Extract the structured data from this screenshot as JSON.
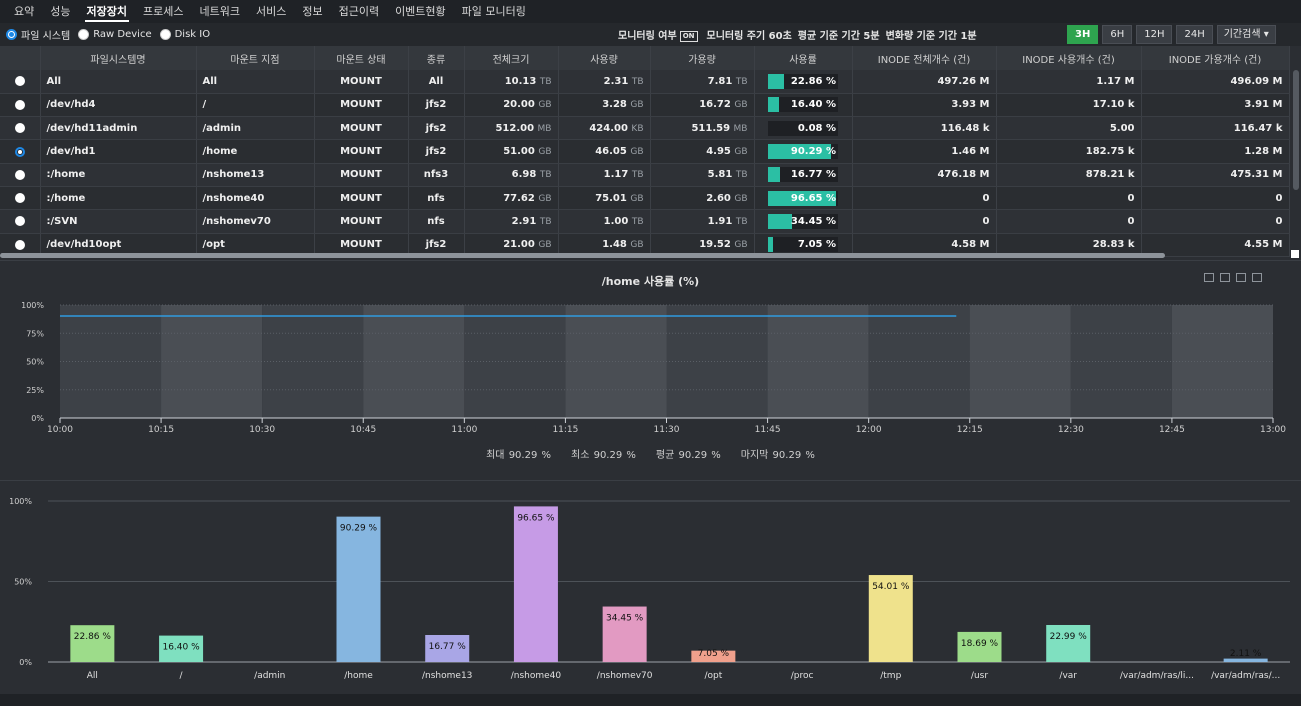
{
  "nav": {
    "tabs": [
      "요약",
      "성능",
      "저장장치",
      "프로세스",
      "네트워크",
      "서비스",
      "정보",
      "접근이력",
      "이벤트현황",
      "파일 모니터링"
    ],
    "active_index": 2
  },
  "options": {
    "radios": [
      "파일 시스템",
      "Raw Device",
      "Disk IO"
    ],
    "selected": 0
  },
  "status": {
    "monitoring_label": "모니터링 여부",
    "monitoring_badge": "ON",
    "interval": "모니터링 주기 60초",
    "avg_period": "평균 기준 기간 5분",
    "delta_period": "변화량 기준 기간 1분"
  },
  "periods": {
    "buttons": [
      "3H",
      "6H",
      "12H",
      "24H"
    ],
    "active": "3H",
    "search_label": "기간검색 ▾"
  },
  "table": {
    "headers": [
      "",
      "파일시스템명",
      "마운트 지점",
      "마운트 상태",
      "종류",
      "전체크기",
      "사용량",
      "가용량",
      "사용률",
      "INODE 전체개수 (건)",
      "INODE 사용개수 (건)",
      "INODE 가용개수 (건)"
    ],
    "rows": [
      {
        "fs": "All",
        "mount": "All",
        "state": "MOUNT",
        "type": "All",
        "total": "10.13",
        "total_u": "TB",
        "used": "2.31",
        "used_u": "TB",
        "avail": "7.81",
        "avail_u": "TB",
        "pct": 22.86,
        "pct_label": "22.86 %",
        "inode_total": "497.26 M",
        "inode_used": "1.17 M",
        "inode_avail": "496.09 M",
        "selected": false
      },
      {
        "fs": "/dev/hd4",
        "mount": "/",
        "state": "MOUNT",
        "type": "jfs2",
        "total": "20.00",
        "total_u": "GB",
        "used": "3.28",
        "used_u": "GB",
        "avail": "16.72",
        "avail_u": "GB",
        "pct": 16.4,
        "pct_label": "16.40 %",
        "inode_total": "3.93 M",
        "inode_used": "17.10 k",
        "inode_avail": "3.91 M",
        "selected": false
      },
      {
        "fs": "/dev/hd11admin",
        "mount": "/admin",
        "state": "MOUNT",
        "type": "jfs2",
        "total": "512.00",
        "total_u": "MB",
        "used": "424.00",
        "used_u": "KB",
        "avail": "511.59",
        "avail_u": "MB",
        "pct": 0.08,
        "pct_label": "0.08 %",
        "inode_total": "116.48 k",
        "inode_used": "5.00",
        "inode_avail": "116.47 k",
        "selected": false
      },
      {
        "fs": "/dev/hd1",
        "mount": "/home",
        "state": "MOUNT",
        "type": "jfs2",
        "total": "51.00",
        "total_u": "GB",
        "used": "46.05",
        "used_u": "GB",
        "avail": "4.95",
        "avail_u": "GB",
        "pct": 90.29,
        "pct_label": "90.29 %",
        "inode_total": "1.46 M",
        "inode_used": "182.75 k",
        "inode_avail": "1.28 M",
        "selected": true
      },
      {
        "fs": ":/home",
        "mount": "/nshome13",
        "state": "MOUNT",
        "type": "nfs3",
        "total": "6.98",
        "total_u": "TB",
        "used": "1.17",
        "used_u": "TB",
        "avail": "5.81",
        "avail_u": "TB",
        "pct": 16.77,
        "pct_label": "16.77 %",
        "inode_total": "476.18 M",
        "inode_used": "878.21 k",
        "inode_avail": "475.31 M",
        "selected": false
      },
      {
        "fs": ":/home",
        "mount": "/nshome40",
        "state": "MOUNT",
        "type": "nfs",
        "total": "77.62",
        "total_u": "GB",
        "used": "75.01",
        "used_u": "GB",
        "avail": "2.60",
        "avail_u": "GB",
        "pct": 96.65,
        "pct_label": "96.65 %",
        "inode_total": "0",
        "inode_used": "0",
        "inode_avail": "0",
        "selected": false
      },
      {
        "fs": ":/SVN",
        "mount": "/nshomev70",
        "state": "MOUNT",
        "type": "nfs",
        "total": "2.91",
        "total_u": "TB",
        "used": "1.00",
        "used_u": "TB",
        "avail": "1.91",
        "avail_u": "TB",
        "pct": 34.45,
        "pct_label": "34.45 %",
        "inode_total": "0",
        "inode_used": "0",
        "inode_avail": "0",
        "selected": false
      },
      {
        "fs": "/dev/hd10opt",
        "mount": "/opt",
        "state": "MOUNT",
        "type": "jfs2",
        "total": "21.00",
        "total_u": "GB",
        "used": "1.48",
        "used_u": "GB",
        "avail": "19.52",
        "avail_u": "GB",
        "pct": 7.05,
        "pct_label": "7.05 %",
        "inode_total": "4.58 M",
        "inode_used": "28.83 k",
        "inode_avail": "4.55 M",
        "selected": false
      }
    ]
  },
  "line_chart": {
    "title": "/home 사용률 (%)",
    "stats": [
      "최대 90.29 %",
      "최소 90.29 %",
      "평균 90.29 %",
      "마지막 90.29 %"
    ],
    "chart_data": {
      "type": "line",
      "title": "/home 사용률 (%)",
      "x_ticks": [
        "10:00",
        "10:15",
        "10:30",
        "10:45",
        "11:00",
        "11:15",
        "11:30",
        "11:45",
        "12:00",
        "12:15",
        "12:30",
        "12:45",
        "13:00"
      ],
      "y_ticks": [
        "0%",
        "25%",
        "50%",
        "75%",
        "100%"
      ],
      "ylim": [
        0,
        100
      ],
      "series": [
        {
          "x_start": "10:00",
          "x_end": "12:13",
          "value": 90.29
        }
      ],
      "line_color": "#2f9be0"
    }
  },
  "bar_chart": {
    "chart_data": {
      "type": "bar",
      "categories": [
        "All",
        "/",
        "/admin",
        "/home",
        "/nshome13",
        "/nshome40",
        "/nshomev70",
        "/opt",
        "/proc",
        "/tmp",
        "/usr",
        "/var",
        "/var/adm/ras/li...",
        "/var/adm/ras/..."
      ],
      "values": [
        22.86,
        16.4,
        0,
        90.29,
        16.77,
        96.65,
        34.45,
        7.05,
        0,
        54.01,
        18.69,
        22.99,
        0,
        2.11
      ],
      "labels": [
        "22.86 %",
        "16.40 %",
        "",
        "90.29 %",
        "16.77 %",
        "96.65 %",
        "34.45 %",
        "7.05 %",
        "",
        "54.01 %",
        "18.69 %",
        "22.99 %",
        "",
        "2.11 %"
      ],
      "colors": [
        "#9ddc8a",
        "#7fe0c0",
        "#9ddc8a",
        "#86b6e0",
        "#a9a6e6",
        "#c69be6",
        "#e29ac2",
        "#f0a08c",
        "#9ddc8a",
        "#efe28c",
        "#9ddc8a",
        "#7fe0c0",
        "#86b6e0",
        "#86b6e0"
      ],
      "y_ticks": [
        "0%",
        "50%",
        "100%"
      ],
      "ylim": [
        0,
        100
      ]
    }
  }
}
